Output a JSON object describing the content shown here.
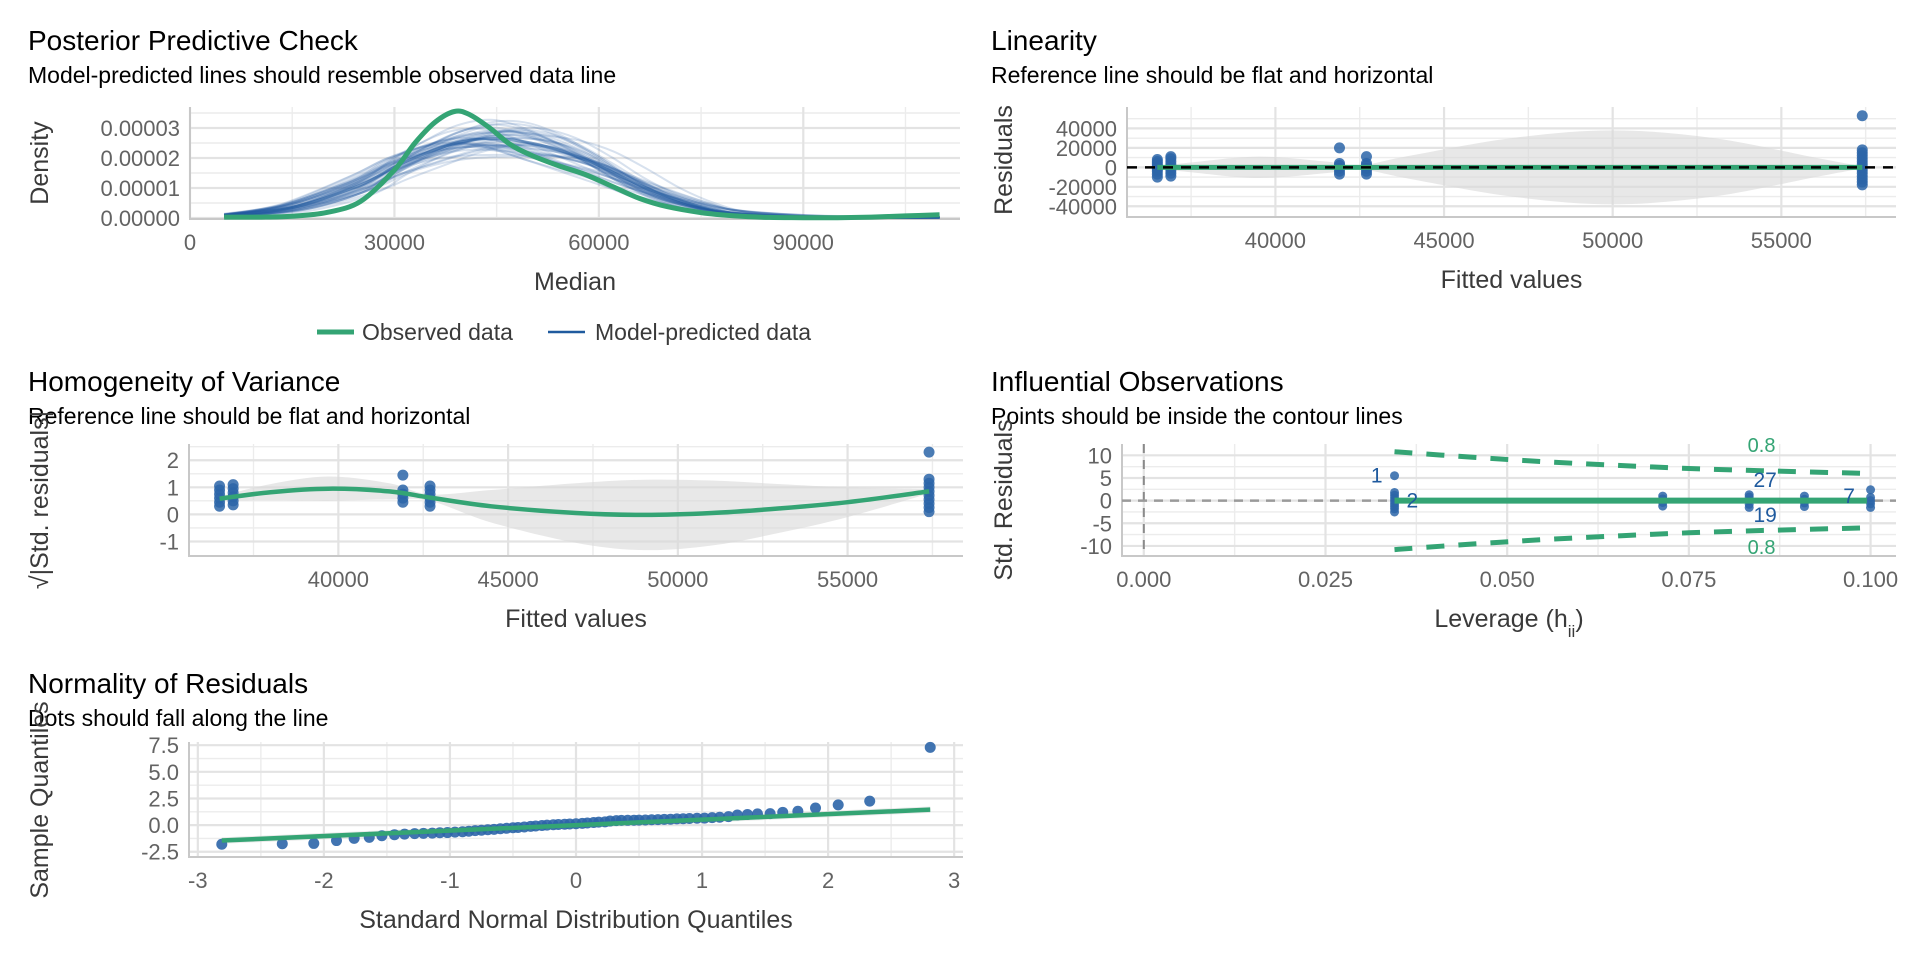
{
  "colors": {
    "observed": "#34a474",
    "predicted": "#1f5a9e",
    "point": "#2c65a8",
    "ribbon": "#d9d9d9",
    "contour": "#34a474",
    "reference": "#000000",
    "label_blue": "#1f5a9e",
    "label_green": "#34a474"
  },
  "chart_data": [
    {
      "id": "ppc",
      "type": "line",
      "title": "Posterior Predictive Check",
      "subtitle": "Model-predicted lines should resemble observed data line",
      "xlabel": "Median",
      "ylabel": "Density",
      "xlim": [
        0,
        113000
      ],
      "ylim": [
        0,
        3.7e-05
      ],
      "xticks": [
        0,
        30000,
        60000,
        90000
      ],
      "xtick_labels": [
        "0",
        "30000",
        "60000",
        "90000"
      ],
      "yticks": [
        0,
        1e-05,
        2e-05,
        3e-05
      ],
      "ytick_labels": [
        "0.00000",
        "0.00001",
        "0.00002",
        "0.00003"
      ],
      "legend": {
        "position": "bottom",
        "items": [
          {
            "label": "Observed data",
            "series": "observed"
          },
          {
            "label": "Model-predicted data",
            "series": "predicted"
          }
        ]
      },
      "observed": {
        "x": [
          5000,
          10000,
          15000,
          20000,
          25000,
          30000,
          33000,
          36000,
          38800,
          41000,
          44000,
          47000,
          50000,
          54000,
          58000,
          62000,
          66000,
          70000,
          75000,
          80000,
          85000,
          90000,
          95000,
          100000,
          105000,
          110000
        ],
        "y": [
          3e-07,
          3e-07,
          6e-07,
          1.8e-06,
          5.5e-06,
          1.6e-05,
          2.5e-05,
          3.2e-05,
          3.55e-05,
          3.45e-05,
          3e-05,
          2.45e-05,
          2.1e-05,
          1.75e-05,
          1.45e-05,
          1.05e-05,
          6.5e-06,
          3.8e-06,
          1.8e-06,
          7e-07,
          2e-07,
          1e-07,
          1e-07,
          3e-07,
          7e-07,
          1.1e-06
        ]
      },
      "predicted_band": {
        "x": [
          5000,
          15000,
          25000,
          30000,
          35000,
          40000,
          45000,
          50000,
          55000,
          60000,
          65000,
          70000,
          75000,
          80000,
          90000,
          100000,
          110000
        ],
        "mean": [
          8e-07,
          3.5e-06,
          1.1e-05,
          1.7e-05,
          2.2e-05,
          2.55e-05,
          2.65e-05,
          2.5e-05,
          2.2e-05,
          1.75e-05,
          1.2e-05,
          7.2e-06,
          3.8e-06,
          1.5e-06,
          3e-07,
          2e-07,
          2e-07
        ],
        "spread": [
          4e-07,
          1e-06,
          2.5e-06,
          3e-06,
          3.5e-06,
          4e-06,
          4.5e-06,
          4.5e-06,
          4e-06,
          3.5e-06,
          3e-06,
          2.2e-06,
          1.5e-06,
          1e-06,
          5e-07,
          2e-07,
          1e-07
        ],
        "n_draws": 40
      }
    },
    {
      "id": "linearity",
      "type": "scatter",
      "title": "Linearity",
      "subtitle": "Reference line should be flat and horizontal",
      "xlabel": "Fitted values",
      "ylabel": "Residuals",
      "xlim": [
        35600,
        58400
      ],
      "ylim": [
        -50000,
        62000
      ],
      "xticks": [
        40000,
        45000,
        50000,
        55000
      ],
      "xtick_labels": [
        "40000",
        "45000",
        "50000",
        "55000"
      ],
      "yticks": [
        -40000,
        -20000,
        0,
        20000,
        40000
      ],
      "ytick_labels": [
        "-40000",
        "-20000",
        "0",
        "20000",
        "40000"
      ],
      "reference_line": 0,
      "smooth": {
        "x": [
          36500,
          57400
        ],
        "y": [
          0,
          0
        ]
      },
      "ribbon": {
        "x": [
          36500,
          37500,
          39500,
          41500,
          42500,
          44000,
          47000,
          50000,
          53000,
          56000,
          57400
        ],
        "half_width": [
          1000,
          5000,
          11000,
          6000,
          2000,
          12000,
          30000,
          38000,
          30000,
          10000,
          1000
        ]
      },
      "points": [
        {
          "x": 36500,
          "y": [
            -10000,
            -7000,
            -4000,
            -2000,
            0,
            2000,
            4000,
            6000,
            8000
          ]
        },
        {
          "x": 36900,
          "y": [
            -9000,
            -6000,
            -3000,
            0,
            3000,
            6000,
            9000,
            11000
          ]
        },
        {
          "x": 41900,
          "y": [
            -7000,
            -4000,
            -1000,
            2000,
            4000,
            20000
          ]
        },
        {
          "x": 42700,
          "y": [
            -7000,
            -4000,
            -1000,
            2000,
            4000,
            11000
          ]
        },
        {
          "x": 57400,
          "y": [
            -18000,
            -15000,
            -12000,
            -9000,
            -6000,
            -3000,
            0,
            3000,
            6000,
            9000,
            12000,
            15000,
            18000,
            53000
          ]
        }
      ]
    },
    {
      "id": "homogeneity",
      "type": "scatter",
      "title": "Homogeneity of Variance",
      "subtitle": "Reference line should be flat and horizontal",
      "xlabel": "Fitted values",
      "ylabel": "√|Std. residuals|",
      "xlim": [
        35600,
        58400
      ],
      "ylim": [
        -1.5,
        2.6
      ],
      "xticks": [
        40000,
        45000,
        50000,
        55000
      ],
      "xtick_labels": [
        "40000",
        "45000",
        "50000",
        "55000"
      ],
      "yticks": [
        -1,
        0,
        1,
        2
      ],
      "ytick_labels": [
        "-1",
        "0",
        "1",
        "2"
      ],
      "smooth": {
        "x": [
          36500,
          38000,
          39700,
          41500,
          42700,
          44500,
          47000,
          49000,
          51000,
          53000,
          55000,
          57400
        ],
        "y": [
          0.58,
          0.82,
          0.95,
          0.85,
          0.62,
          0.3,
          0.05,
          -0.02,
          0.05,
          0.22,
          0.45,
          0.85
        ]
      },
      "ribbon": {
        "x": [
          36500,
          38000,
          39700,
          41500,
          42700,
          44500,
          47000,
          49000,
          51000,
          53000,
          55000,
          57400
        ],
        "half_width": [
          0.08,
          0.3,
          0.45,
          0.3,
          0.12,
          0.6,
          1.1,
          1.3,
          1.2,
          0.9,
          0.55,
          0.08
        ]
      },
      "points": [
        {
          "x": 36500,
          "y": [
            0.3,
            0.45,
            0.6,
            0.75,
            0.9,
            1.05
          ]
        },
        {
          "x": 36900,
          "y": [
            0.35,
            0.5,
            0.65,
            0.8,
            0.95,
            1.1
          ]
        },
        {
          "x": 41900,
          "y": [
            0.45,
            0.6,
            0.75,
            0.9,
            1.45
          ]
        },
        {
          "x": 42700,
          "y": [
            0.3,
            0.45,
            0.6,
            0.75,
            0.9,
            1.05
          ]
        },
        {
          "x": 57400,
          "y": [
            0.1,
            0.25,
            0.4,
            0.55,
            0.7,
            0.85,
            1.0,
            1.15,
            1.3,
            2.3
          ]
        }
      ]
    },
    {
      "id": "influential",
      "type": "scatter",
      "title": "Influential Observations",
      "subtitle": "Points should be inside the contour lines",
      "xlabel": "Leverage (h",
      "xlabel_sub": "ii",
      "xlabel_close": ")",
      "ylabel": "Std. Residuals",
      "xlim": [
        -0.003,
        0.1035
      ],
      "ylim": [
        -12,
        12.5
      ],
      "xticks": [
        0,
        0.025,
        0.05,
        0.075,
        0.1
      ],
      "xtick_labels": [
        "0.000",
        "0.025",
        "0.050",
        "0.075",
        "0.100"
      ],
      "yticks": [
        -10,
        -5,
        0,
        5,
        10
      ],
      "ytick_labels": [
        "-10",
        "-5",
        "0",
        "5",
        "10"
      ],
      "contour_label": "0.8",
      "contour_upper": {
        "x": [
          0.0345,
          0.045,
          0.055,
          0.065,
          0.075,
          0.085,
          0.0995
        ],
        "y": [
          10.8,
          9.6,
          8.6,
          7.8,
          7.1,
          6.6,
          6.0
        ]
      },
      "contour_lower": {
        "x": [
          0.0345,
          0.045,
          0.055,
          0.065,
          0.075,
          0.085,
          0.0995
        ],
        "y": [
          -10.8,
          -9.6,
          -8.6,
          -7.8,
          -7.1,
          -6.6,
          -6.0
        ]
      },
      "smooth": {
        "x": [
          0.0345,
          0.0995
        ],
        "y": [
          0,
          0
        ]
      },
      "points": [
        {
          "x": 0.0345,
          "y": [
            -2.5,
            -1.8,
            -1.2,
            -0.6,
            0,
            0.6,
            1.2,
            1.8,
            5.5
          ]
        },
        {
          "x": 0.0714,
          "y": [
            -1.2,
            -0.4,
            0.4,
            1.0
          ]
        },
        {
          "x": 0.0833,
          "y": [
            -1.5,
            -0.8,
            0,
            0.8,
            1.3
          ]
        },
        {
          "x": 0.0909,
          "y": [
            -1.3,
            -0.5,
            0.3,
            1.0
          ]
        },
        {
          "x": 0.1,
          "y": [
            -1.5,
            -0.7,
            0,
            0.7,
            2.4
          ]
        }
      ],
      "point_labels": [
        {
          "text": "1",
          "x": 0.0345,
          "y": 5.5,
          "side": "left"
        },
        {
          "text": "2",
          "x": 0.0345,
          "y": 0,
          "side": "right"
        },
        {
          "text": "27",
          "x": 0.0855,
          "y": 4.6,
          "side": "center"
        },
        {
          "text": "19",
          "x": 0.0855,
          "y": -3.2,
          "side": "center"
        },
        {
          "text": "7",
          "x": 0.0995,
          "y": 1.0,
          "side": "left"
        }
      ]
    },
    {
      "id": "normality",
      "type": "scatter",
      "title": "Normality of Residuals",
      "subtitle": "Dots should fall along the line",
      "xlabel": "Standard Normal Distribution Quantiles",
      "ylabel": "Sample Quantiles",
      "xlim": [
        -3.07,
        3.07
      ],
      "ylim": [
        -2.9,
        7.8
      ],
      "xticks": [
        -3,
        -2,
        -1,
        0,
        1,
        2,
        3
      ],
      "xtick_labels": [
        "-3",
        "-2",
        "-1",
        "0",
        "1",
        "2",
        "3"
      ],
      "yticks": [
        -2.5,
        0,
        2.5,
        5,
        7.5
      ],
      "ytick_labels": [
        "-2.5",
        "0.0",
        "2.5",
        "5.0",
        "7.5"
      ],
      "line": {
        "x": [
          -2.81,
          2.81
        ],
        "y": [
          -1.45,
          1.45
        ]
      },
      "points_x": [
        -2.81,
        -2.33,
        -2.08,
        -1.9,
        -1.76,
        -1.64,
        -1.54,
        -1.44,
        -1.36,
        -1.28,
        -1.21,
        -1.14,
        -1.08,
        -1.02,
        -0.96,
        -0.9,
        -0.85,
        -0.8,
        -0.75,
        -0.7,
        -0.65,
        -0.6,
        -0.55,
        -0.5,
        -0.46,
        -0.41,
        -0.36,
        -0.32,
        -0.27,
        -0.23,
        -0.18,
        -0.14,
        -0.09,
        -0.05,
        0.0,
        0.05,
        0.09,
        0.14,
        0.18,
        0.23,
        0.27,
        0.32,
        0.36,
        0.41,
        0.46,
        0.5,
        0.55,
        0.6,
        0.65,
        0.7,
        0.75,
        0.8,
        0.85,
        0.9,
        0.96,
        1.02,
        1.08,
        1.14,
        1.21,
        1.28,
        1.36,
        1.44,
        1.54,
        1.64,
        1.76,
        1.9,
        2.08,
        2.33,
        2.81
      ],
      "points_y": [
        -1.8,
        -1.75,
        -1.72,
        -1.45,
        -1.25,
        -1.15,
        -1.0,
        -0.9,
        -0.85,
        -0.8,
        -0.78,
        -0.75,
        -0.72,
        -0.7,
        -0.66,
        -0.62,
        -0.58,
        -0.52,
        -0.48,
        -0.44,
        -0.4,
        -0.34,
        -0.3,
        -0.25,
        -0.22,
        -0.18,
        -0.12,
        -0.08,
        -0.04,
        0.0,
        0.03,
        0.06,
        0.08,
        0.1,
        0.13,
        0.16,
        0.2,
        0.24,
        0.28,
        0.3,
        0.38,
        0.42,
        0.44,
        0.45,
        0.46,
        0.47,
        0.48,
        0.5,
        0.52,
        0.54,
        0.55,
        0.58,
        0.6,
        0.62,
        0.64,
        0.66,
        0.7,
        0.74,
        0.8,
        0.95,
        1.0,
        1.05,
        1.08,
        1.2,
        1.3,
        1.6,
        1.9,
        2.25,
        7.3
      ]
    }
  ]
}
